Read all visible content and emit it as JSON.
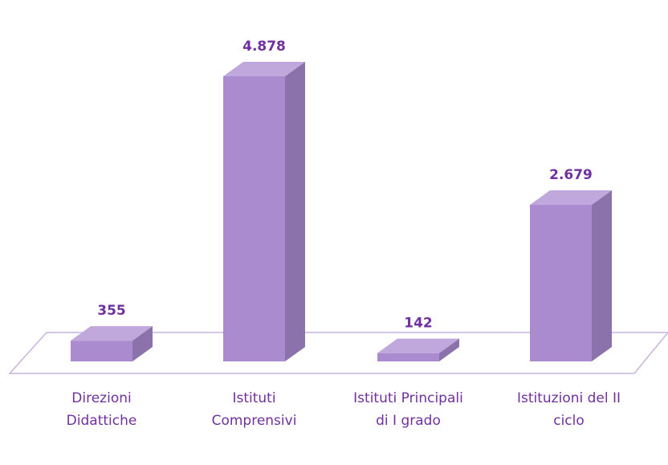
{
  "chart_data": {
    "type": "bar3d",
    "categories": [
      "Direzioni Didattiche",
      "Istituti Comprensivi",
      "Istituti Principali di I grado",
      "Istituzioni del II ciclo"
    ],
    "values": [
      355,
      4878,
      142,
      2679
    ],
    "value_labels": [
      "355",
      "4.878",
      "142",
      "2.679"
    ],
    "color": "#ab8bd0"
  }
}
